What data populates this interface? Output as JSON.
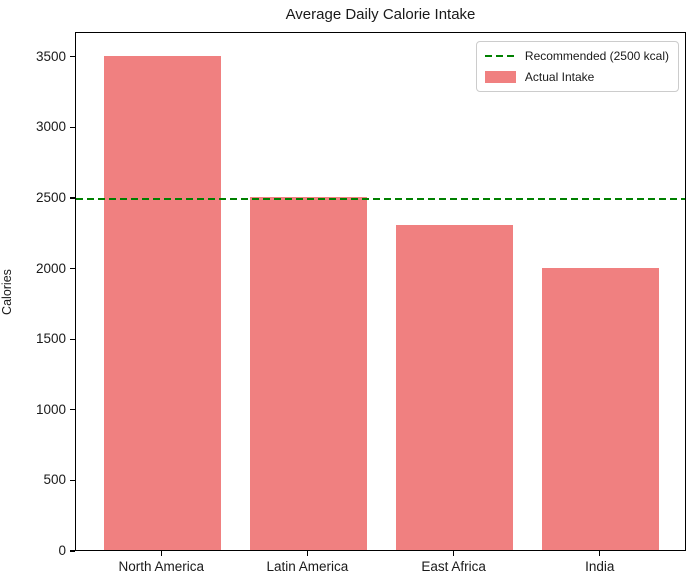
{
  "chart_data": {
    "type": "bar",
    "title": "Average Daily Calorie Intake",
    "xlabel": "",
    "ylabel": "Calories",
    "categories": [
      "North America",
      "Latin America",
      "East Africa",
      "India"
    ],
    "values": [
      3500,
      2500,
      2300,
      2000
    ],
    "bar_color": "#f08080",
    "yticks": [
      0,
      500,
      1000,
      1500,
      2000,
      2500,
      3000,
      3500
    ],
    "ylim": [
      0,
      3675
    ],
    "grid": false,
    "reference_line": {
      "value": 2500,
      "style": "dashed",
      "color": "#008000"
    },
    "legend": {
      "position": "upper right",
      "entries": [
        {
          "label": "Recommended (2500 kcal)",
          "marker": "dashed-line",
          "color": "#008000"
        },
        {
          "label": "Actual Intake",
          "marker": "patch",
          "color": "#f08080"
        }
      ]
    }
  }
}
